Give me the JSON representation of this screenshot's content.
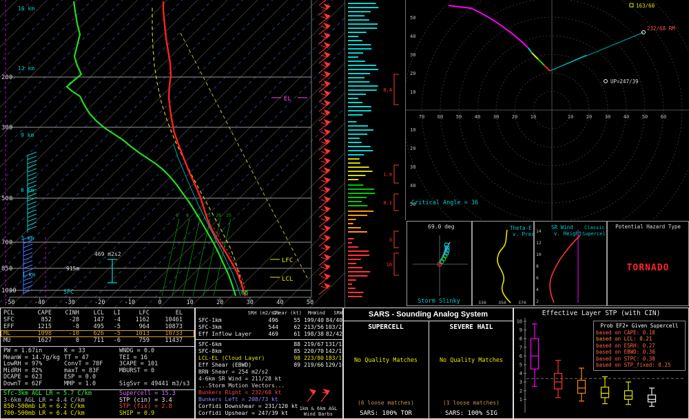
{
  "skewt": {
    "pressures": [
      "200",
      "300",
      "500",
      "700",
      "850",
      "1000"
    ],
    "temps": [
      "-50",
      "-40",
      "-30",
      "-20",
      "-10",
      "0",
      "10",
      "20",
      "30",
      "40",
      "50"
    ],
    "heights": [
      "16 km",
      "12 km",
      "9 km",
      "6 km",
      "3 km",
      "1 km"
    ],
    "mixing_ratios": [
      "6",
      "8",
      "10",
      "15",
      "20",
      "25"
    ],
    "el": "EL",
    "lfc": "LFC",
    "lcl": "LCL",
    "sfc": "SFC",
    "sfc_temp": "68",
    "inflow_height": "915m",
    "esrh": "469 m2s2"
  },
  "advection": {
    "values": [
      "8.4",
      "1.9",
      "0.1",
      "3",
      "10"
    ]
  },
  "hodograph": {
    "left": [
      "70",
      "60",
      "50",
      "40",
      "30",
      "20",
      "10"
    ],
    "right": [
      "10",
      "20",
      "30",
      "40",
      "50",
      "60"
    ],
    "top": [
      "50",
      "40",
      "30",
      "20",
      "10"
    ],
    "bottom": [
      "10",
      "20",
      "30",
      "40",
      "50",
      "60"
    ],
    "rm": "232/68 RM",
    "up": "UP=247/39",
    "corner": "163/60",
    "critical_angle": "Critical Angle = 36"
  },
  "slinky": {
    "angle": "69.0 deg",
    "title": "Storm Slinky"
  },
  "thetae": {
    "title1": "Theta-E",
    "title2": "v. Pres",
    "ticks": [
      "330",
      "350",
      "370"
    ]
  },
  "srwind": {
    "title1": "SR Wind",
    "title2": "v. Height",
    "annotation1": "Classic",
    "annotation2": "Supercell",
    "yticks": [
      "14",
      "12",
      "10",
      "8",
      "6",
      "4",
      "2"
    ]
  },
  "hazard": {
    "title": "Potential Hazard Type",
    "value": "TORNADO"
  },
  "thermo": {
    "headers": [
      "PCL",
      "CAPE",
      "CINH",
      "LCL",
      "LI",
      "LFC",
      "EL"
    ],
    "rows": [
      {
        "label": "SFC",
        "cape": "852",
        "cinh": "-28",
        "lcl": "147",
        "li": "-4",
        "lfc": "1162",
        "el": "10461"
      },
      {
        "label": "EFF",
        "cape": "1215",
        "cinh": "-8",
        "lcl": "495",
        "li": "-5",
        "lfc": "964",
        "el": "10873"
      },
      {
        "label": "ML",
        "cape": "1098",
        "cinh": "-10",
        "lcl": "626",
        "li": "-5",
        "lfc": "1013",
        "el": "10733"
      },
      {
        "label": "MU",
        "cape": "1627",
        "cinh": "0",
        "lcl": "711",
        "li": "-6",
        "lfc": "759",
        "el": "11437"
      }
    ],
    "stats_col1": [
      "PW = 1.67in",
      "MeanW = 14.7g/kg",
      "LowRH = 97%",
      "MidRH = 82%",
      "DCAPE = 623",
      "DownT = 62F"
    ],
    "stats_col2": [
      "K = 33",
      "TT = 47",
      "ConvT = 78F",
      "maxT = 83F",
      "ESP = 0.0",
      "MMP = 1.0"
    ],
    "stats_col3": [
      "WNDG = 0.0",
      "TEI = 16",
      "3CAPE = 101",
      "MBURST = 0",
      "",
      "SigSvr = 49441 m3/s3"
    ],
    "lapse_rates": [
      {
        "text": "Sfc-3km AGL LR = 5.7 C/km",
        "color": "#33ff33"
      },
      {
        "text": "3-6km AGL LR = 4.4 C/km",
        "color": "#bbbbbb"
      },
      {
        "text": "850-500mb LR = 6.2 C/km",
        "color": "#e6e600"
      },
      {
        "text": "700-500mb LR = 6.4 C/km",
        "color": "#e6e600"
      }
    ],
    "composites": [
      {
        "text": "Supercell = 15.3",
        "color": "#e066ff"
      },
      {
        "text": "STP (cin) = 3.4",
        "color": "#eeeeee"
      },
      {
        "text": "STP (fix) = 2.8",
        "color": "#ff4444"
      },
      {
        "text": "SHIP = 0.9",
        "color": "#e6e600"
      }
    ]
  },
  "kinematics": {
    "headers": [
      "SRH (m2/s2)",
      "Shear (kt)",
      "MnWind",
      "SRW"
    ],
    "rows": [
      {
        "label": "SFC-1km",
        "srh": "496",
        "shear": "55",
        "mnwind": "199/40",
        "srw": "84/40",
        "color": "#eeeeee"
      },
      {
        "label": "SFC-3km",
        "srh": "544",
        "shear": "62",
        "mnwind": "213/56",
        "srw": "103/23",
        "color": "#eeeeee"
      },
      {
        "label": "Eff Inflow Layer",
        "srh": "469",
        "shear": "61",
        "mnwind": "198/38",
        "srw": "82/42",
        "color": "#eeeeee"
      },
      {
        "label": "SFC-6km",
        "srh": "",
        "shear": "88",
        "mnwind": "219/67",
        "srw": "131/15",
        "color": "#eeeeee"
      },
      {
        "label": "SFC-8km",
        "srh": "",
        "shear": "85",
        "mnwind": "220/70",
        "srw": "142/15",
        "color": "#eeeeee"
      },
      {
        "label": "LCL-EL (Cloud Layer)",
        "srh": "",
        "shear": "98",
        "mnwind": "223/80",
        "srw": "183/17",
        "color": "#e6e600"
      },
      {
        "label": "Eff Shear (EBWD)",
        "srh": "",
        "shear": "89",
        "mnwind": "219/66",
        "srw": "129/16",
        "color": "#eeeeee"
      }
    ],
    "brn_shear": "BRN Shear = 254 m2/s2",
    "sr_wind_46": "4-6km SR Wind = 211/28 kt",
    "storm_motion_header": "...Storm Motion Vectors...",
    "vectors": [
      {
        "text": "Bunkers Right = 232/68 kt",
        "color": "#ff4444"
      },
      {
        "text": "Bunkers Left = 208/73 kt",
        "color": "#8888ff"
      },
      {
        "text": "Corfidi Downshear = 231/120 kt",
        "color": "#eeeeee"
      },
      {
        "text": "Corfidi Upshear = 247/39 kt",
        "color": "#eeeeee"
      }
    ],
    "barb_caption": "1km & 6km AGL Wind Barbs"
  },
  "sars": {
    "title": "SARS - Sounding Analog System",
    "col1": {
      "header": "SUPERCELL",
      "status": "No Quality Matches",
      "loose": "(6 loose matches)",
      "result": "SARS: 100% TOR"
    },
    "col2": {
      "header": "SEVERE HAIL",
      "status": "No Quality Matches",
      "loose": "(1 loose matches)",
      "result": "SARS: 100% SIG"
    }
  },
  "stp": {
    "title": "Effective Layer STP (with CIN)",
    "yticks": [
      "10",
      "9",
      "8",
      "7",
      "6",
      "5",
      "4",
      "3",
      "2",
      "1"
    ],
    "legend_title": "Prob EF2+ Given Supercell",
    "legend": [
      {
        "text": "based on CAPE: 0.18",
        "color": "#ff6644"
      },
      {
        "text": "based on LCL: 0.21",
        "color": "#ff8844"
      },
      {
        "text": "based on ESRH: 0.27",
        "color": "#ff6644"
      },
      {
        "text": "based on EBWD: 0.30",
        "color": "#ff6644"
      },
      {
        "text": "based on STPC: 0.38",
        "color": "#ff6644"
      },
      {
        "text": "based on STP_fixed: 0.25",
        "color": "#ff6644"
      }
    ]
  },
  "chart_data": {
    "type": "boxplot",
    "title": "Effective Layer STP (with CIN)",
    "ylim": [
      0,
      11
    ],
    "reference_line": 3.4,
    "series": [
      {
        "name": "box1",
        "color": "#ff00ff",
        "whisker_low": 2.5,
        "q1": 4.5,
        "median": 6.0,
        "q3": 8.0,
        "whisker_high": 9.7
      },
      {
        "name": "box2",
        "color": "#ff3333",
        "whisker_low": 1.2,
        "q1": 2.2,
        "median": 3.0,
        "q3": 4.0,
        "whisker_high": 5.5
      },
      {
        "name": "box3",
        "color": "#ff8800",
        "whisker_low": 0.8,
        "q1": 1.7,
        "median": 2.3,
        "q3": 3.2,
        "whisker_high": 4.6
      },
      {
        "name": "box4",
        "color": "#e6e600",
        "whisker_low": 0.5,
        "q1": 1.2,
        "median": 1.7,
        "q3": 2.4,
        "whisker_high": 3.6
      },
      {
        "name": "box5",
        "color": "#e6e600",
        "whisker_low": 0.4,
        "q1": 1.0,
        "median": 1.4,
        "q3": 2.0,
        "whisker_high": 3.0
      },
      {
        "name": "box6",
        "color": "#eeeeee",
        "whisker_low": 0.2,
        "q1": 0.7,
        "median": 1.0,
        "q3": 1.5,
        "whisker_high": 2.3
      }
    ]
  }
}
